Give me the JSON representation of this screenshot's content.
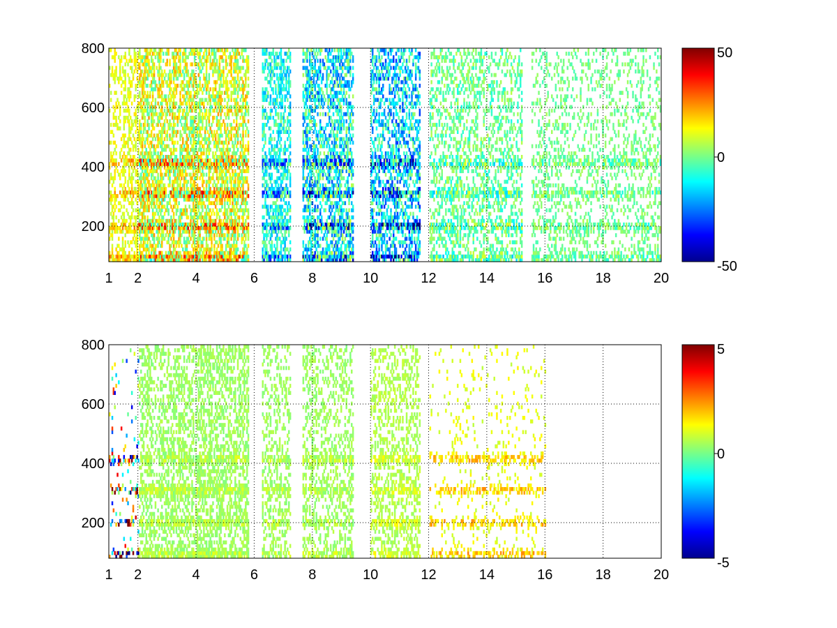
{
  "chart_data": [
    {
      "type": "heatmap",
      "xlim": [
        1,
        20
      ],
      "ylim": [
        80,
        800
      ],
      "x_ticks": [
        "1",
        "2",
        "4",
        "6",
        "8",
        "10",
        "12",
        "14",
        "16",
        "18",
        "20"
      ],
      "y_ticks": [
        "200",
        "400",
        "600",
        "800"
      ],
      "grid": true,
      "colormap": "jet",
      "colorbar": {
        "min": -50,
        "max": 50,
        "ticks": [
          "50",
          "0",
          "-50"
        ]
      },
      "harmonic_bands_y": [
        95,
        200,
        310,
        415
      ],
      "x_gaps": [
        [
          5.85,
          6.25
        ],
        [
          7.25,
          7.65
        ],
        [
          9.7,
          9.95
        ]
      ],
      "regions": [
        {
          "x": [
            1.0,
            2.0
          ],
          "level_mean": 10,
          "level_spread": 6,
          "coverage": 0.35
        },
        {
          "x": [
            2.0,
            5.8
          ],
          "level_mean": 8,
          "level_spread": 15,
          "coverage": 0.55
        },
        {
          "x": [
            6.2,
            7.3
          ],
          "level_mean": -10,
          "level_spread": 12,
          "coverage": 0.5
        },
        {
          "x": [
            7.6,
            9.4
          ],
          "level_mean": -12,
          "level_spread": 18,
          "coverage": 0.5
        },
        {
          "x": [
            10.0,
            11.7
          ],
          "level_mean": -15,
          "level_spread": 18,
          "coverage": 0.45
        },
        {
          "x": [
            12.0,
            15.2
          ],
          "level_mean": -2,
          "level_spread": 8,
          "coverage": 0.35
        },
        {
          "x": [
            15.5,
            20.0
          ],
          "level_mean": -1,
          "level_spread": 5,
          "coverage": 0.22
        }
      ]
    },
    {
      "type": "heatmap",
      "xlim": [
        1,
        20
      ],
      "ylim": [
        80,
        800
      ],
      "x_ticks": [
        "1",
        "2",
        "4",
        "6",
        "8",
        "10",
        "12",
        "14",
        "16",
        "18",
        "20"
      ],
      "y_ticks": [
        "200",
        "400",
        "600",
        "800"
      ],
      "grid": true,
      "colormap": "jet",
      "colorbar": {
        "min": -5,
        "max": 5,
        "ticks": [
          "5",
          "0",
          "-5"
        ]
      },
      "harmonic_bands_y": [
        95,
        200,
        310,
        415
      ],
      "x_gaps": [
        [
          5.85,
          6.25
        ],
        [
          7.25,
          7.65
        ],
        [
          9.7,
          9.95
        ]
      ],
      "regions": [
        {
          "x": [
            1.0,
            2.0
          ],
          "level_mean": 0,
          "level_spread": 4,
          "coverage": 0.05
        },
        {
          "x": [
            2.0,
            5.8
          ],
          "level_mean": 0.3,
          "level_spread": 0.3,
          "coverage": 0.45
        },
        {
          "x": [
            6.2,
            7.3
          ],
          "level_mean": 0.3,
          "level_spread": 0.3,
          "coverage": 0.3
        },
        {
          "x": [
            7.6,
            9.4
          ],
          "level_mean": 0.3,
          "level_spread": 0.3,
          "coverage": 0.3
        },
        {
          "x": [
            10.0,
            11.7
          ],
          "level_mean": 0.5,
          "level_spread": 0.3,
          "coverage": 0.35
        },
        {
          "x": [
            12.0,
            16.0
          ],
          "level_mean": 1.0,
          "level_spread": 0.4,
          "coverage": 0.06
        }
      ]
    }
  ]
}
